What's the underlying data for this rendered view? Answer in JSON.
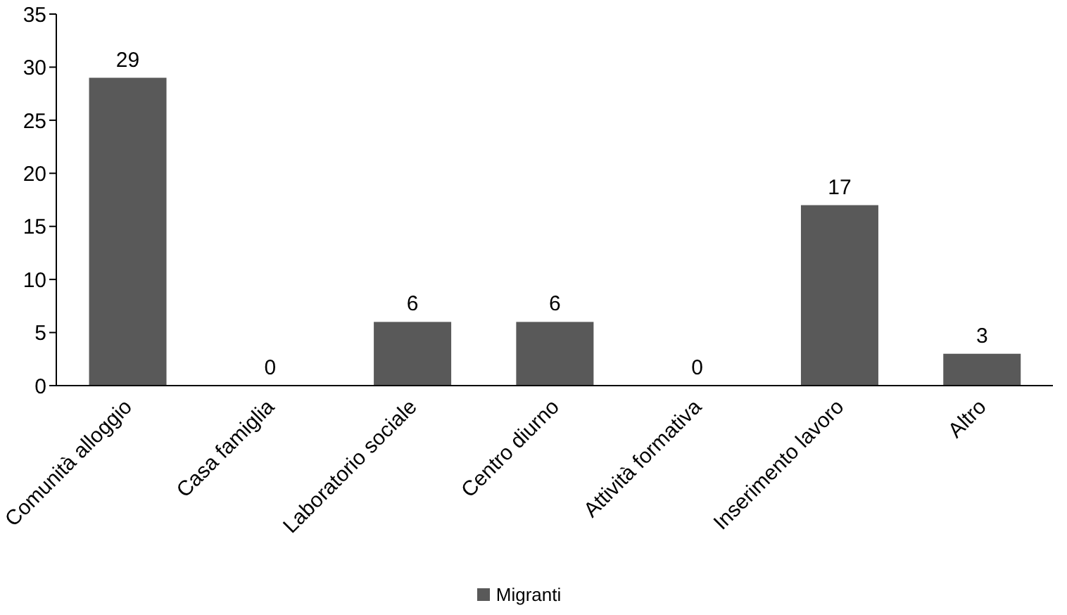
{
  "chart_data": {
    "type": "bar",
    "categories": [
      "Comunità alloggio",
      "Casa famiglia",
      "Laboratorio sociale",
      "Centro diurno",
      "Attività formativa",
      "Inserimento lavoro",
      "Altro"
    ],
    "series": [
      {
        "name": "Migranti",
        "color": "#595959",
        "values": [
          29,
          0,
          6,
          6,
          0,
          17,
          3
        ]
      }
    ],
    "ylim": [
      0,
      35
    ],
    "yticks": [
      0,
      5,
      10,
      15,
      20,
      25,
      30,
      35
    ],
    "grid": false,
    "legend": "bottom",
    "data_labels": true
  }
}
